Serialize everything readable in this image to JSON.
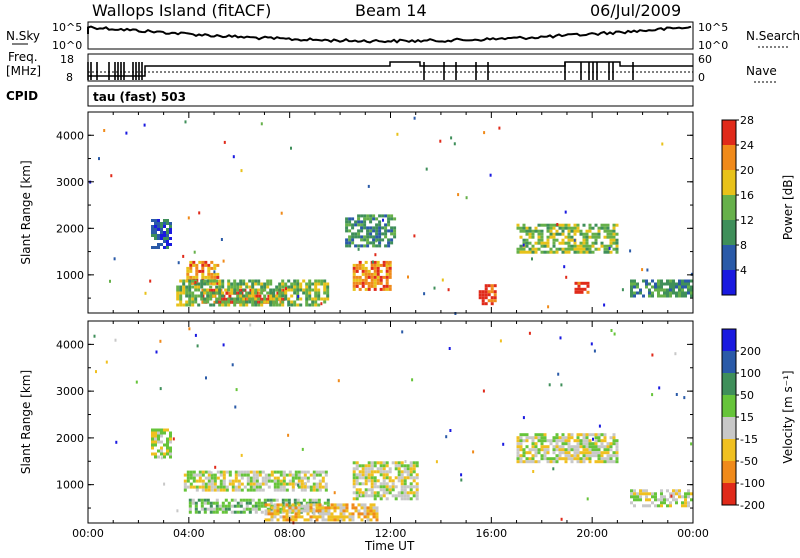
{
  "header": {
    "station": "Wallops Island (fitACF)",
    "beam": "Beam 14",
    "date": "06/Jul/2009"
  },
  "status": {
    "nsky_label": "N.Sky",
    "nsky_ticks": [
      "10^5",
      "10^0"
    ],
    "nsearch_label": "N.Search",
    "freq_label": "Freq.",
    "freq_unit": "[MHz]",
    "freq_ticks": [
      "18",
      "8"
    ],
    "nave_label": "Nave",
    "nave_ticks": [
      "60",
      "0"
    ],
    "cpid_label": "CPID",
    "cpid_value": "tau (fast) 503"
  },
  "chart_data": [
    {
      "type": "heatmap",
      "panel": "power",
      "ylabel": "Slant Range [km]",
      "xlabel": "",
      "ylim": [
        180,
        4500
      ],
      "yticks": [
        1000,
        2000,
        3000,
        4000
      ],
      "xticks": [
        "00:00",
        "04:00",
        "08:00",
        "12:00",
        "16:00",
        "20:00",
        "00:00"
      ],
      "colorbar": {
        "label": "Power [dB]",
        "ticks": [
          "4",
          "8",
          "12",
          "16",
          "20",
          "24",
          "28"
        ],
        "colors": [
          "#1a1ae0",
          "#2a5aa8",
          "#3f8f5a",
          "#66b04a",
          "#e8c21a",
          "#f08a1a",
          "#e02a1a"
        ]
      },
      "regions": [
        {
          "t0": 3.9,
          "t1": 5.2,
          "r0": 800,
          "r1": 1300,
          "level": 5
        },
        {
          "t0": 4.5,
          "t1": 7.8,
          "r0": 380,
          "r1": 700,
          "level": 6
        },
        {
          "t0": 3.5,
          "t1": 9.5,
          "r0": 350,
          "r1": 900,
          "level": 3
        },
        {
          "t0": 2.5,
          "t1": 3.3,
          "r0": 1600,
          "r1": 2200,
          "level": 1
        },
        {
          "t0": 10.2,
          "t1": 12.2,
          "r0": 1600,
          "r1": 2300,
          "level": 2
        },
        {
          "t0": 10.5,
          "t1": 12.0,
          "r0": 700,
          "r1": 1300,
          "level": 5
        },
        {
          "t0": 17.0,
          "t1": 21.0,
          "r0": 1500,
          "r1": 2100,
          "level": 3
        },
        {
          "t0": 21.5,
          "t1": 23.9,
          "r0": 550,
          "r1": 900,
          "level": 2
        },
        {
          "t0": 15.5,
          "t1": 16.1,
          "r0": 400,
          "r1": 800,
          "level": 6
        },
        {
          "t0": 19.3,
          "t1": 19.8,
          "r0": 600,
          "r1": 850,
          "level": 6
        }
      ]
    },
    {
      "type": "heatmap",
      "panel": "velocity",
      "ylabel": "Slant Range [km]",
      "xlabel": "Time UT",
      "ylim": [
        180,
        4500
      ],
      "yticks": [
        1000,
        2000,
        3000,
        4000
      ],
      "xticks": [
        "00:00",
        "04:00",
        "08:00",
        "12:00",
        "16:00",
        "20:00",
        "00:00"
      ],
      "colorbar": {
        "label": "Velocity [m s⁻¹]",
        "ticks": [
          "200",
          "100",
          "50",
          "15",
          "-15",
          "-50",
          "-100",
          "-200"
        ],
        "colors": [
          "#1a1ae0",
          "#2a5aa8",
          "#3f8f5a",
          "#66c43a",
          "#c8c8c8",
          "#f0c020",
          "#f08a1a",
          "#e02a1a"
        ]
      },
      "regions": [
        {
          "t0": 4.0,
          "t1": 9.5,
          "r0": 380,
          "r1": 700,
          "level": 3
        },
        {
          "t0": 7.0,
          "t1": 11.5,
          "r0": 250,
          "r1": 600,
          "level": 5
        },
        {
          "t0": 3.8,
          "t1": 9.5,
          "r0": 900,
          "r1": 1300,
          "level": 4
        },
        {
          "t0": 10.5,
          "t1": 13.0,
          "r0": 700,
          "r1": 1500,
          "level": 4
        },
        {
          "t0": 17.0,
          "t1": 21.0,
          "r0": 1500,
          "r1": 2100,
          "level": 4
        },
        {
          "t0": 21.5,
          "t1": 23.9,
          "r0": 550,
          "r1": 900,
          "level": 4
        },
        {
          "t0": 2.5,
          "t1": 3.3,
          "r0": 1600,
          "r1": 2200,
          "level": 4
        }
      ]
    }
  ]
}
